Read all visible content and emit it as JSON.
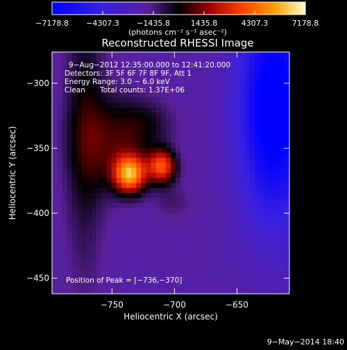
{
  "chart_data": {
    "type": "heatmap",
    "title": "Reconstructed RHESSI Image",
    "xlabel": "Heliocentric X (arcsec)",
    "ylabel": "Heliocentric Y (arcsec)",
    "xlim": [
      -798,
      -608
    ],
    "ylim": [
      -462,
      -276
    ],
    "x_ticks": [
      {
        "value": -750,
        "label": "−750"
      },
      {
        "value": -700,
        "label": "−700"
      },
      {
        "value": -650,
        "label": "−650"
      }
    ],
    "y_ticks": [
      {
        "value": -300,
        "label": "−300"
      },
      {
        "value": -350,
        "label": "−350"
      },
      {
        "value": -400,
        "label": "−400"
      },
      {
        "value": -450,
        "label": "−450"
      }
    ],
    "colorbar": {
      "min": -7178.8,
      "max": 7178.8,
      "unit": "(photons cm⁻² s⁻¹ asec⁻²)",
      "ticks": [
        {
          "value": -7178.8,
          "label": "−7178.8"
        },
        {
          "value": -4307.3,
          "label": "−4307.3"
        },
        {
          "value": -1435.8,
          "label": "−1435.8"
        },
        {
          "value": 1435.8,
          "label": "1435.8"
        },
        {
          "value": 4307.3,
          "label": "4307.3"
        },
        {
          "value": 7178.8,
          "label": "7178.8"
        }
      ]
    },
    "annotations": {
      "time_range": "9−Aug−2012 12:35:00.000 to 12:41:20.000",
      "detectors": "Detectors: 3F 5F 6F 7F 8F 9F, Att 1",
      "energy": "Energy Range: 3.0 − 6.0 keV",
      "method": "Clean",
      "counts": "Total counts: 1.37E+06",
      "peak": "Position of Peak = [−736,−370]"
    },
    "peak": {
      "x": -736,
      "y": -370
    },
    "sources": [
      {
        "x": -736,
        "y": -370,
        "sx": 9,
        "sy": 10,
        "amp": 7000
      },
      {
        "x": -710,
        "y": -364,
        "sx": 8,
        "sy": 9,
        "amp": 5600
      },
      {
        "x": -745,
        "y": -345,
        "sx": 22,
        "sy": 26,
        "amp": 2600
      },
      {
        "x": -720,
        "y": -330,
        "sx": 16,
        "sy": 12,
        "amp": 1000
      },
      {
        "x": -772,
        "y": -330,
        "sx": 12,
        "sy": 90,
        "amp": 2000
      },
      {
        "x": -700,
        "y": -392,
        "sx": 12,
        "sy": 10,
        "amp": 900
      },
      {
        "x": -620,
        "y": -320,
        "sx": 20,
        "sy": 60,
        "amp": -6000
      }
    ],
    "background": -2200
  },
  "footer": {
    "date": "9−May−2014 18:40"
  }
}
